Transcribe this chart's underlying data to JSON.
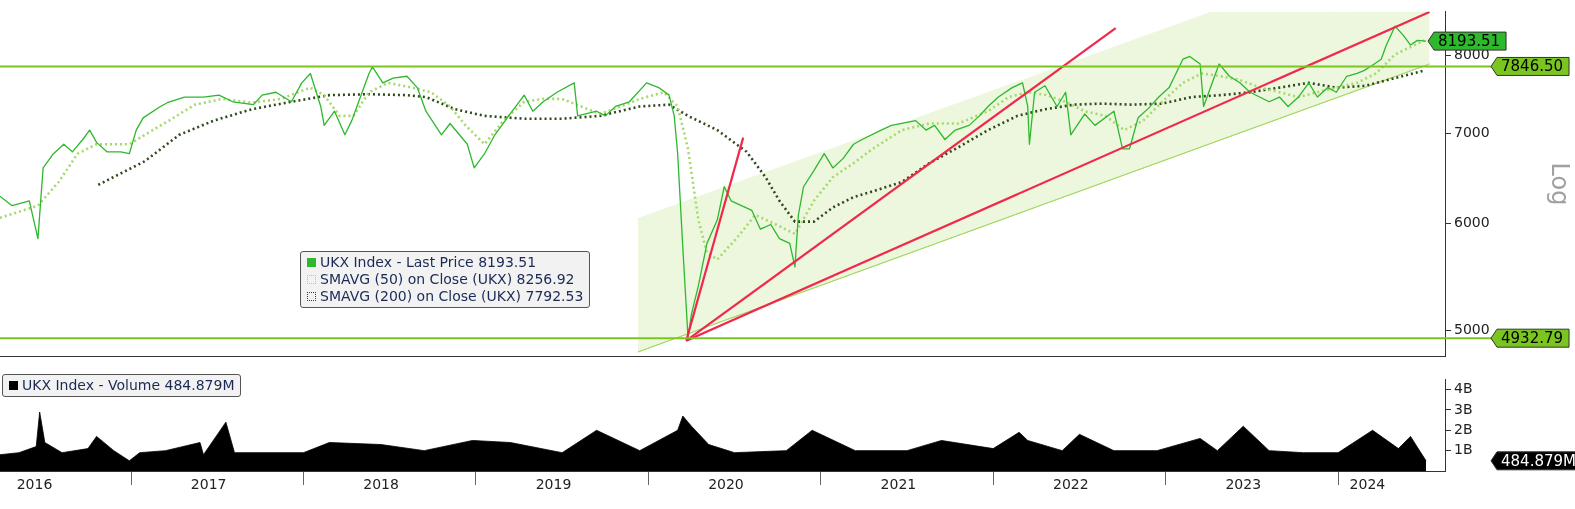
{
  "chart_data": [
    {
      "type": "line",
      "log": "y",
      "ylabel": "Log",
      "legend": "bottom left",
      "tick_labels": "y",
      "xlim": [
        2016.24,
        2024.62
      ],
      "ylim": [
        4780,
        8620
      ],
      "yticks": [
        5000,
        6000,
        7000,
        8000
      ],
      "series": [
        {
          "name": "UKX Index - Last Price 8193.51",
          "color": "#2db82d",
          "line_style": "solid",
          "x": [
            2016.24,
            2016.31,
            2016.41,
            2016.46,
            2016.49,
            2016.55,
            2016.61,
            2016.66,
            2016.72,
            2016.76,
            2016.8,
            2016.86,
            2016.94,
            2016.99,
            2017.03,
            2017.07,
            2017.17,
            2017.21,
            2017.31,
            2017.42,
            2017.51,
            2017.59,
            2017.71,
            2017.76,
            2017.84,
            2017.93,
            2017.99,
            2018.04,
            2018.1,
            2018.12,
            2018.18,
            2018.24,
            2018.28,
            2018.32,
            2018.38,
            2018.4,
            2018.46,
            2018.52,
            2018.6,
            2018.66,
            2018.71,
            2018.8,
            2018.85,
            2018.95,
            2018.99,
            2019.05,
            2019.11,
            2019.19,
            2019.28,
            2019.33,
            2019.39,
            2019.47,
            2019.57,
            2019.59,
            2019.7,
            2019.75,
            2019.81,
            2019.89,
            2019.99,
            2020.06,
            2020.12,
            2020.15,
            2020.17,
            2020.2,
            2020.23,
            2020.25,
            2020.29,
            2020.34,
            2020.4,
            2020.44,
            2020.48,
            2020.54,
            2020.6,
            2020.65,
            2020.71,
            2020.76,
            2020.82,
            2020.85,
            2020.87,
            2020.9,
            2020.96,
            2021.02,
            2021.07,
            2021.13,
            2021.19,
            2021.24,
            2021.35,
            2021.41,
            2021.55,
            2021.61,
            2021.66,
            2021.72,
            2021.78,
            2021.86,
            2021.92,
            2021.97,
            2022.03,
            2022.11,
            2022.17,
            2022.2,
            2022.21,
            2022.24,
            2022.3,
            2022.37,
            2022.42,
            2022.45,
            2022.53,
            2022.59,
            2022.7,
            2022.75,
            2022.79,
            2022.84,
            2022.9,
            2022.96,
            2023.02,
            2023.1,
            2023.14,
            2023.2,
            2023.22,
            2023.26,
            2023.31,
            2023.37,
            2023.43,
            2023.49,
            2023.6,
            2023.66,
            2023.71,
            2023.77,
            2023.83,
            2023.88,
            2023.94,
            2023.99,
            2024.05,
            2024.11,
            2024.15,
            2024.21,
            2024.25,
            2024.28,
            2024.33,
            2024.38,
            2024.42,
            2024.46,
            2024.51
          ],
          "values": [
            6287,
            6186,
            6237,
            5847,
            6598,
            6760,
            6870,
            6782,
            6926,
            7038,
            6892,
            6782,
            6782,
            6760,
            7038,
            7187,
            7328,
            7375,
            7447,
            7447,
            7471,
            7387,
            7351,
            7471,
            7508,
            7387,
            7630,
            7753,
            7328,
            7095,
            7269,
            6982,
            7153,
            7387,
            7753,
            7842,
            7630,
            7691,
            7716,
            7568,
            7269,
            6982,
            7118,
            6870,
            6598,
            6760,
            6982,
            7211,
            7471,
            7269,
            7387,
            7508,
            7630,
            7211,
            7269,
            7211,
            7328,
            7387,
            7630,
            7568,
            7471,
            7211,
            6760,
            5753,
            4936,
            5139,
            5394,
            5800,
            6038,
            6389,
            6237,
            6186,
            6136,
            5942,
            5990,
            5847,
            5800,
            5571,
            6088,
            6389,
            6567,
            6760,
            6598,
            6706,
            6870,
            6926,
            7038,
            7095,
            7153,
            7038,
            7095,
            6926,
            7038,
            7095,
            7211,
            7328,
            7447,
            7568,
            7630,
            7328,
            6870,
            7508,
            7592,
            7328,
            7508,
            6982,
            7234,
            7095,
            7269,
            6815,
            6815,
            7187,
            7304,
            7447,
            7568,
            7944,
            7982,
            7879,
            7328,
            7568,
            7879,
            7716,
            7630,
            7508,
            7387,
            7447,
            7328,
            7447,
            7630,
            7447,
            7568,
            7508,
            7716,
            7753,
            7791,
            7879,
            7944,
            8138,
            8405,
            8270,
            8138,
            8204,
            8193.51
          ],
          "value_labels": [
            null,
            null,
            null,
            null,
            null,
            null,
            null,
            null,
            null,
            null,
            null,
            null,
            null,
            null,
            null,
            null,
            null,
            null,
            null,
            null,
            null,
            null,
            null,
            null,
            null,
            null,
            null,
            null,
            null,
            null,
            null,
            null,
            null,
            null,
            null,
            null,
            null,
            null,
            null,
            null,
            null,
            null,
            null,
            null,
            null,
            null,
            null,
            null,
            null,
            null,
            null,
            null,
            null,
            null,
            null,
            null,
            null,
            null,
            null,
            null,
            null,
            null,
            null,
            null,
            null,
            null,
            null,
            null,
            null,
            null,
            null,
            null,
            null,
            null,
            null,
            null,
            null,
            null,
            null,
            null,
            null,
            null,
            null,
            null,
            null,
            null,
            null,
            null,
            null,
            null,
            null,
            null,
            null,
            null,
            null,
            null,
            null,
            null,
            null,
            null,
            null,
            null,
            null,
            null,
            null,
            null,
            null,
            null,
            null,
            null,
            null,
            null,
            null,
            null,
            null,
            null,
            null,
            null,
            null,
            null,
            null,
            null,
            null,
            null,
            null,
            null,
            null,
            null,
            null,
            null,
            null,
            null,
            null,
            null,
            null,
            null,
            null,
            null,
            null,
            null,
            null,
            null,
            "8193.51"
          ]
        },
        {
          "name": "SMAVG (50)  on Close (UKX) 8256.92",
          "color": "#a6d96a",
          "line_style": "dotted",
          "x": [
            2016.24,
            2016.46,
            2016.58,
            2016.69,
            2016.8,
            2016.91,
            2016.99,
            2017.08,
            2017.22,
            2017.37,
            2017.53,
            2017.7,
            2017.87,
            2018.04,
            2018.12,
            2018.21,
            2018.29,
            2018.38,
            2018.49,
            2018.63,
            2018.74,
            2018.85,
            2018.94,
            2019.05,
            2019.16,
            2019.28,
            2019.39,
            2019.5,
            2019.61,
            2019.72,
            2019.84,
            2019.95,
            2020.09,
            2020.17,
            2020.23,
            2020.29,
            2020.34,
            2020.4,
            2020.51,
            2020.62,
            2020.74,
            2020.85,
            2020.96,
            2021.07,
            2021.19,
            2021.3,
            2021.47,
            2021.63,
            2021.8,
            2021.97,
            2022.09,
            2022.2,
            2022.31,
            2022.42,
            2022.53,
            2022.65,
            2022.76,
            2022.87,
            2022.98,
            2023.1,
            2023.21,
            2023.32,
            2023.43,
            2023.55,
            2023.66,
            2023.77,
            2023.88,
            2023.99,
            2024.11,
            2024.22,
            2024.33,
            2024.5
          ],
          "values": [
            6058,
            6186,
            6441,
            6760,
            6870,
            6870,
            6870,
            6982,
            7153,
            7351,
            7423,
            7375,
            7423,
            7568,
            7471,
            7211,
            7211,
            7508,
            7630,
            7568,
            7508,
            7328,
            7095,
            6870,
            7153,
            7387,
            7423,
            7423,
            7328,
            7234,
            7328,
            7423,
            7508,
            7328,
            6815,
            6038,
            5707,
            5643,
            5847,
            6088,
            5990,
            5894,
            6237,
            6493,
            6652,
            6815,
            7038,
            7118,
            7118,
            7269,
            7447,
            7508,
            7471,
            7387,
            7269,
            7211,
            7038,
            7153,
            7387,
            7630,
            7753,
            7716,
            7667,
            7568,
            7508,
            7447,
            7508,
            7568,
            7630,
            7753,
            8008,
            8204
          ]
        },
        {
          "name": "SMAVG (200)  on Close (UKX) 7792.53",
          "color": "#2f4a1c",
          "line_style": "dotted",
          "x": [
            2016.81,
            2017.08,
            2017.28,
            2017.48,
            2017.7,
            2017.93,
            2018.15,
            2018.38,
            2018.6,
            2018.71,
            2018.88,
            2019.05,
            2019.28,
            2019.5,
            2019.72,
            2019.95,
            2020.12,
            2020.23,
            2020.4,
            2020.57,
            2020.68,
            2020.76,
            2020.85,
            2020.96,
            2021.07,
            2021.19,
            2021.3,
            2021.47,
            2021.63,
            2021.8,
            2021.97,
            2022.14,
            2022.3,
            2022.47,
            2022.63,
            2022.8,
            2022.98,
            2023.15,
            2023.32,
            2023.49,
            2023.66,
            2023.83,
            2023.99,
            2024.16,
            2024.33,
            2024.5
          ],
          "values": [
            6410,
            6674,
            6982,
            7153,
            7293,
            7387,
            7471,
            7483,
            7471,
            7447,
            7293,
            7211,
            7176,
            7176,
            7211,
            7328,
            7351,
            7211,
            7038,
            6782,
            6493,
            6237,
            6019,
            6019,
            6167,
            6277,
            6338,
            6441,
            6652,
            6837,
            7038,
            7211,
            7293,
            7351,
            7364,
            7351,
            7364,
            7447,
            7471,
            7508,
            7568,
            7630,
            7568,
            7592,
            7691,
            7791
          ]
        },
        {
          "type": "line",
          "color": "#a9d96a",
          "line_style": "solid",
          "x": [
            2019.94,
            2023.26,
            2024.53
          ],
          "values": [
            4818,
            6878,
            7879
          ],
          "lower": [
            4818,
            6878,
            7879
          ],
          "upper": [
            6058,
            8611,
            8620
          ]
        },
        {
          "color": "#f0284a",
          "line_style": "solid",
          "x": [
            2020.22,
            2020.55
          ],
          "values": [
            4912,
            6948
          ]
        },
        {
          "color": "#f0284a",
          "line_style": "solid",
          "x": [
            2020.22,
            2022.71
          ],
          "values": [
            4912,
            8378
          ]
        },
        {
          "color": "#f0284a",
          "line_style": "solid",
          "x": [
            2020.22,
            2024.53
          ],
          "values": [
            4912,
            8611
          ]
        }
      ],
      "ref_lines": [
        {
          "axis": "y",
          "value": 7846.5,
          "label": "7846.50",
          "color": "#7ac520"
        },
        {
          "axis": "y",
          "value": 4932.79,
          "label": "4932.79",
          "color": "#7ac520"
        }
      ]
    },
    {
      "type": "area",
      "legend": "top left",
      "xlim": [
        2016.24,
        2024.62
      ],
      "ylim": [
        0,
        4.5
      ],
      "xticks": [
        {
          "value": 2016.44,
          "label": "2016"
        },
        {
          "value": 2017,
          "label": null
        },
        {
          "value": 2017.45,
          "label": "2017"
        },
        {
          "value": 2018,
          "label": null
        },
        {
          "value": 2018.45,
          "label": "2018"
        },
        {
          "value": 2019,
          "label": null
        },
        {
          "value": 2019.45,
          "label": "2019"
        },
        {
          "value": 2020,
          "label": null
        },
        {
          "value": 2020.45,
          "label": "2020"
        },
        {
          "value": 2021,
          "label": null
        },
        {
          "value": 2021.45,
          "label": "2021"
        },
        {
          "value": 2022,
          "label": null
        },
        {
          "value": 2022.45,
          "label": "2022"
        },
        {
          "value": 2023,
          "label": null
        },
        {
          "value": 2023.45,
          "label": "2023"
        },
        {
          "value": 2024,
          "label": null
        },
        {
          "value": 2024.17,
          "label": "2024"
        }
      ],
      "yticks": [
        {
          "value": 1,
          "label": "1B"
        },
        {
          "value": 2,
          "label": "2B"
        },
        {
          "value": 3,
          "label": "3B"
        },
        {
          "value": 4,
          "label": "4B"
        }
      ],
      "series": [
        {
          "name": "UKX Index - Volume 484.879M",
          "color": "#000000",
          "x": [
            2016.24,
            2016.35,
            2016.45,
            2016.47,
            2016.5,
            2016.6,
            2016.75,
            2016.8,
            2016.9,
            2016.99,
            2017.05,
            2017.2,
            2017.4,
            2017.42,
            2017.55,
            2017.6,
            2017.9,
            2018.0,
            2018.15,
            2018.45,
            2018.7,
            2018.98,
            2019.2,
            2019.5,
            2019.7,
            2019.95,
            2020.17,
            2020.2,
            2020.25,
            2020.35,
            2020.5,
            2020.8,
            2020.95,
            2021.2,
            2021.5,
            2021.7,
            2022.0,
            2022.15,
            2022.2,
            2022.4,
            2022.5,
            2022.7,
            2022.95,
            2023.2,
            2023.3,
            2023.45,
            2023.6,
            2023.8,
            2024.0,
            2024.2,
            2024.35,
            2024.42,
            2024.51
          ],
          "values": [
            0.8,
            0.9,
            1.2,
            2.9,
            1.4,
            0.9,
            1.1,
            1.7,
            1.0,
            0.5,
            0.9,
            1.0,
            1.4,
            0.8,
            2.4,
            0.9,
            0.9,
            0.9,
            1.4,
            1.3,
            1.0,
            1.5,
            1.4,
            0.9,
            2.0,
            1.0,
            2.0,
            2.7,
            2.2,
            1.3,
            0.9,
            1.0,
            2.0,
            1.0,
            1.0,
            1.5,
            1.1,
            1.9,
            1.5,
            1.0,
            1.8,
            1.0,
            1.0,
            1.6,
            1.0,
            2.2,
            1.0,
            0.9,
            0.9,
            2.0,
            1.1,
            1.7,
            0.5
          ]
        }
      ],
      "annotations": [
        "484.879M"
      ]
    }
  ]
}
